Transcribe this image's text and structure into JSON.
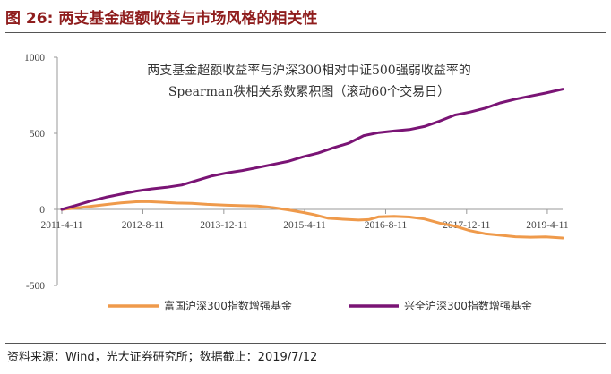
{
  "figure": {
    "number": "图 26:",
    "title": "两支基金超额收益与市场风格的相关性",
    "source": "资料来源：Wind，光大证券研究所；数据截止：2019/7/12"
  },
  "colors": {
    "title": "#8f1d1d",
    "series_orange": "#ef9a4b",
    "series_purple": "#7a1475",
    "axis": "#9a9a9a"
  },
  "chart_data": {
    "type": "line",
    "title_lines": [
      "两支基金超额收益率与沪深300相对中证500强弱收益率的",
      "Spearman秩相关系数累积图（滚动60个交易日）"
    ],
    "x_tick_labels": [
      "2011-4-11",
      "2012-8-11",
      "2013-12-11",
      "2015-4-11",
      "2016-8-11",
      "2017-12-11",
      "2019-4-11"
    ],
    "x_ticks": [
      "2011-04-11",
      "2012-08-11",
      "2013-12-11",
      "2015-04-11",
      "2016-08-11",
      "2017-12-11",
      "2019-04-11"
    ],
    "x_range": [
      "2011-03-15",
      "2019-07-12"
    ],
    "ylim": [
      -500,
      1000
    ],
    "y_ticks": [
      -500,
      0,
      500,
      1000
    ],
    "y_tick_labels": [
      "-500",
      "0",
      "500",
      "1000"
    ],
    "series": [
      {
        "name": "富国沪深300指数增强基金",
        "color": "#ef9a4b",
        "points": [
          [
            "2011-04-11",
            0
          ],
          [
            "2011-07-01",
            8
          ],
          [
            "2011-10-01",
            20
          ],
          [
            "2012-01-01",
            32
          ],
          [
            "2012-04-01",
            43
          ],
          [
            "2012-07-01",
            50
          ],
          [
            "2012-09-01",
            52
          ],
          [
            "2012-12-01",
            47
          ],
          [
            "2013-03-01",
            42
          ],
          [
            "2013-06-01",
            40
          ],
          [
            "2013-09-01",
            33
          ],
          [
            "2014-01-01",
            27
          ],
          [
            "2014-04-01",
            24
          ],
          [
            "2014-07-01",
            22
          ],
          [
            "2014-10-01",
            12
          ],
          [
            "2015-01-01",
            -3
          ],
          [
            "2015-04-01",
            -20
          ],
          [
            "2015-06-01",
            -33
          ],
          [
            "2015-09-01",
            -58
          ],
          [
            "2015-12-01",
            -65
          ],
          [
            "2016-03-01",
            -70
          ],
          [
            "2016-05-01",
            -67
          ],
          [
            "2016-07-01",
            -48
          ],
          [
            "2016-10-01",
            -45
          ],
          [
            "2017-01-01",
            -50
          ],
          [
            "2017-04-01",
            -63
          ],
          [
            "2017-07-01",
            -90
          ],
          [
            "2017-10-01",
            -110
          ],
          [
            "2018-01-01",
            -140
          ],
          [
            "2018-04-01",
            -160
          ],
          [
            "2018-07-01",
            -170
          ],
          [
            "2018-10-01",
            -180
          ],
          [
            "2019-01-01",
            -183
          ],
          [
            "2019-04-01",
            -181
          ],
          [
            "2019-07-12",
            -188
          ]
        ]
      },
      {
        "name": "兴全沪深300指数增强基金",
        "color": "#7a1475",
        "points": [
          [
            "2011-04-11",
            0
          ],
          [
            "2011-07-01",
            25
          ],
          [
            "2011-10-01",
            55
          ],
          [
            "2012-01-01",
            80
          ],
          [
            "2012-04-01",
            100
          ],
          [
            "2012-07-01",
            120
          ],
          [
            "2012-10-01",
            135
          ],
          [
            "2013-01-01",
            145
          ],
          [
            "2013-04-01",
            160
          ],
          [
            "2013-07-01",
            190
          ],
          [
            "2013-10-01",
            220
          ],
          [
            "2014-01-01",
            240
          ],
          [
            "2014-04-01",
            255
          ],
          [
            "2014-07-01",
            275
          ],
          [
            "2014-10-01",
            295
          ],
          [
            "2015-01-01",
            315
          ],
          [
            "2015-04-01",
            345
          ],
          [
            "2015-07-01",
            370
          ],
          [
            "2015-10-01",
            405
          ],
          [
            "2016-01-01",
            435
          ],
          [
            "2016-04-01",
            485
          ],
          [
            "2016-07-01",
            505
          ],
          [
            "2016-10-01",
            515
          ],
          [
            "2017-01-01",
            525
          ],
          [
            "2017-04-01",
            545
          ],
          [
            "2017-07-01",
            580
          ],
          [
            "2017-10-01",
            620
          ],
          [
            "2018-01-01",
            640
          ],
          [
            "2018-04-01",
            665
          ],
          [
            "2018-07-01",
            700
          ],
          [
            "2018-10-01",
            725
          ],
          [
            "2019-01-01",
            745
          ],
          [
            "2019-04-01",
            765
          ],
          [
            "2019-07-12",
            790
          ]
        ]
      }
    ],
    "legend_position": "bottom"
  }
}
